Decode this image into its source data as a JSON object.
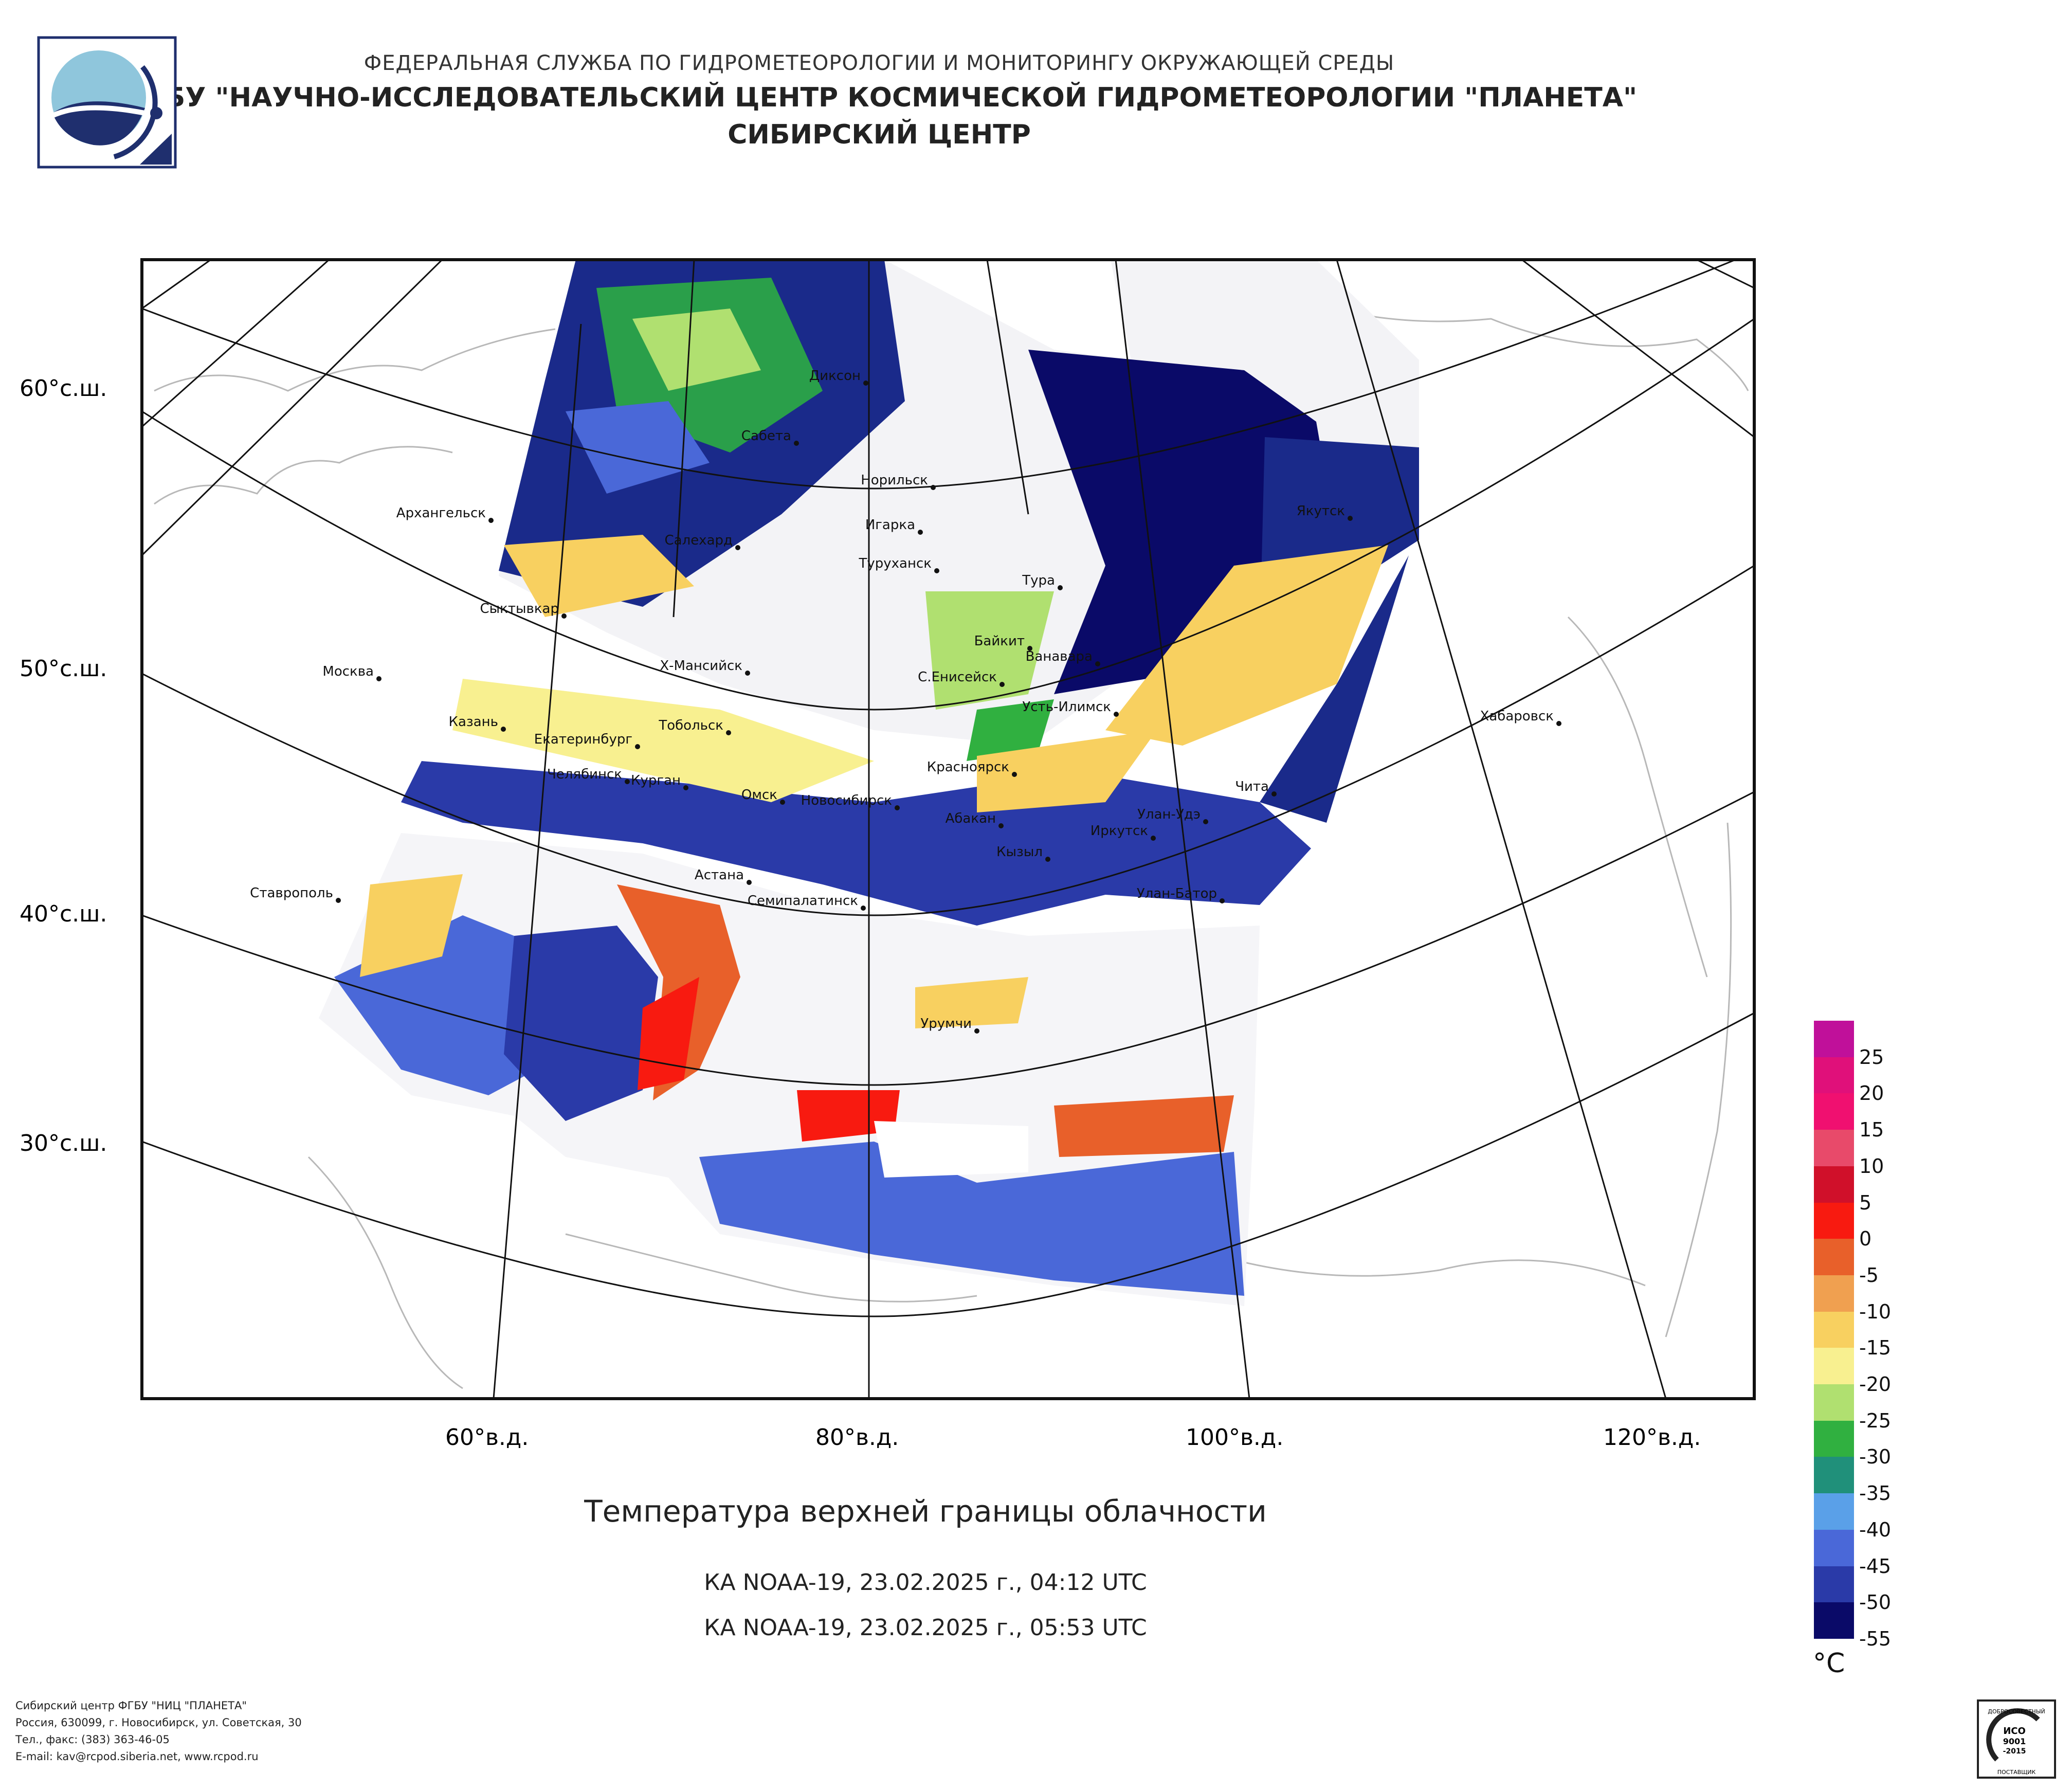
{
  "header": {
    "line1": "ФЕДЕРАЛЬНАЯ СЛУЖБА ПО ГИДРОМЕТЕОРОЛОГИИ И МОНИТОРИНГУ ОКРУЖАЮЩЕЙ СРЕДЫ",
    "line2": "ФГБУ \"НАУЧНО-ИССЛЕДОВАТЕЛЬСКИЙ ЦЕНТР КОСМИЧЕСКОЙ ГИДРОМЕТЕОРОЛОГИИ \"ПЛАНЕТА\"",
    "line3": "СИБИРСКИЙ ЦЕНТР"
  },
  "map": {
    "lat_labels": [
      "60°с.ш.",
      "50°с.ш.",
      "40°с.ш.",
      "30°с.ш."
    ],
    "lon_labels": [
      "60°в.д.",
      "80°в.д.",
      "100°в.д.",
      "120°в.д."
    ],
    "cities": [
      "Диксон",
      "Сабета",
      "Норильск",
      "Архангельск",
      "Салехард",
      "Игарка",
      "Туруханск",
      "Якутск",
      "Тура",
      "Сыктывкар",
      "Байкит",
      "Ванавара",
      "Москва",
      "Х-Мансийск",
      "С.Енисейск",
      "Усть-Илимск",
      "Казань",
      "Тобольск",
      "Хабаровск",
      "Екатеринбург",
      "Красноярск",
      "Челябинск",
      "Курган",
      "Чита",
      "Омск",
      "Новосибирск",
      "Улан-Удэ",
      "Абакан",
      "Иркутск",
      "Кызыл",
      "Астана",
      "Ставрополь",
      "Семипалатинск",
      "Улан-Батор",
      "Урумчи"
    ]
  },
  "title": "Температура верхней границы облачности",
  "satellite_passes": [
    "КА NOAA-19, 23.02.2025 г., 04:12 UTC",
    "КА NOAA-19, 23.02.2025 г., 05:53 UTC"
  ],
  "legend": {
    "unit": "°C",
    "labels": [
      "25",
      "20",
      "15",
      "10",
      "5",
      "0",
      "-5",
      "-10",
      "-15",
      "-20",
      "-25",
      "-30",
      "-35",
      "-40",
      "-45",
      "-50",
      "-55"
    ],
    "colors": [
      "#c0109a",
      "#e0107a",
      "#f01070",
      "#e84a6a",
      "#d0102a",
      "#f81a10",
      "#e8602a",
      "#f0a050",
      "#f8d060",
      "#f8f090",
      "#b0e070",
      "#30b040",
      "#20907a",
      "#5aa0e8",
      "#4a68d8",
      "#2a3aa8",
      "#0a0a68"
    ]
  },
  "footer": {
    "line1": "Сибирский центр ФГБУ \"НИЦ \"ПЛАНЕТА\"",
    "line2": "Россия, 630099, г. Новосибирск, ул. Советская, 30",
    "line3": "Тел., факс: (383) 363-46-05",
    "line4": "E-mail: kav@rcpod.siberia.net, www.rcpod.ru"
  },
  "cert": {
    "top": "ДОБРОСОВЕСТНЫЙ",
    "mid1": "ИСО",
    "mid2": "9001",
    "mid3": "-2015",
    "bottom": "ПОСТАВЩИК"
  }
}
